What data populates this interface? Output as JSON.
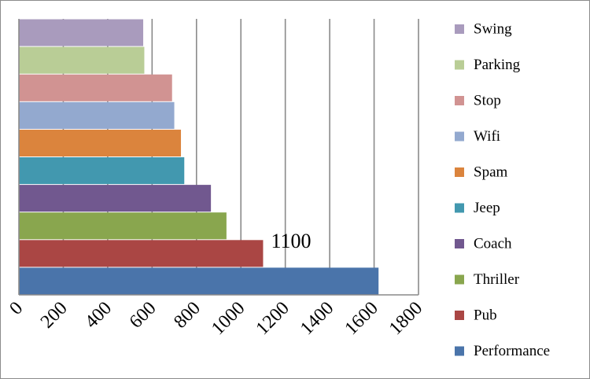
{
  "chart_data": {
    "type": "bar",
    "orientation": "horizontal",
    "categories": [
      "Performance",
      "Pub",
      "Thriller",
      "Coach",
      "Jeep",
      "Spam",
      "Wifi",
      "Stop",
      "Parking",
      "Swing"
    ],
    "values": [
      1620,
      1100,
      935,
      865,
      745,
      730,
      700,
      690,
      565,
      560
    ],
    "colors": [
      "#4a74aa",
      "#aa4644",
      "#89a64e",
      "#71588f",
      "#4298af",
      "#db843d",
      "#93a9cf",
      "#d19392",
      "#b9cd96",
      "#a99bbd"
    ],
    "data_labels": [
      {
        "category": "Pub",
        "text": "1100"
      }
    ],
    "x_ticks": [
      "0",
      "200",
      "400",
      "600",
      "800",
      "1000",
      "1200",
      "1400",
      "1600",
      "1800"
    ],
    "xlim": [
      0,
      1800
    ],
    "grid": "vertical",
    "legend_position": "right",
    "title": "",
    "xlabel": "",
    "ylabel": ""
  }
}
